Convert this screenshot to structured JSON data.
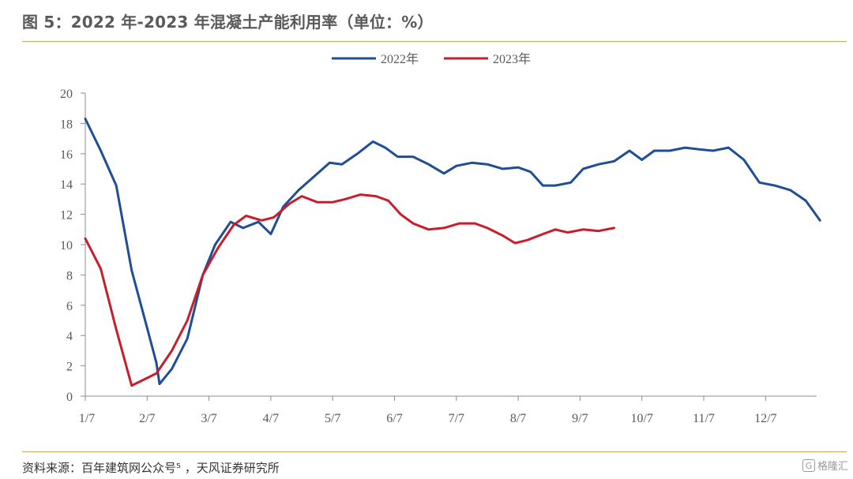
{
  "header": {
    "title": "图 5：2022 年-2023 年混凝土产能利用率（单位：%）"
  },
  "footer": {
    "source": "资料来源：百年建筑网公众号⁵ ，天风证券研究所",
    "watermark": "格隆汇",
    "watermark_icon": "G"
  },
  "chart_data": {
    "type": "line",
    "x_tick_labels": [
      "1/7",
      "2/7",
      "3/7",
      "4/7",
      "5/7",
      "6/7",
      "7/7",
      "8/7",
      "9/7",
      "10/7",
      "11/7",
      "12/7"
    ],
    "ylim": [
      0,
      20
    ],
    "y_ticks": [
      0,
      2,
      4,
      6,
      8,
      10,
      12,
      14,
      16,
      18,
      20
    ],
    "grid": false,
    "legend_position": "top-center",
    "series": [
      {
        "name": "2022年",
        "color": "#1f4e96",
        "points": [
          [
            0.0,
            18.3
          ],
          [
            0.25,
            16.2
          ],
          [
            0.5,
            13.9
          ],
          [
            0.75,
            8.3
          ],
          [
            1.0,
            4.5
          ],
          [
            1.15,
            2.2
          ],
          [
            1.2,
            0.8
          ],
          [
            1.4,
            1.8
          ],
          [
            1.65,
            3.8
          ],
          [
            1.9,
            8.0
          ],
          [
            2.1,
            10.0
          ],
          [
            2.35,
            11.5
          ],
          [
            2.55,
            11.1
          ],
          [
            2.8,
            11.5
          ],
          [
            3.0,
            10.7
          ],
          [
            3.2,
            12.5
          ],
          [
            3.45,
            13.6
          ],
          [
            3.7,
            14.5
          ],
          [
            3.95,
            15.4
          ],
          [
            4.15,
            15.3
          ],
          [
            4.4,
            16.0
          ],
          [
            4.65,
            16.8
          ],
          [
            4.85,
            16.4
          ],
          [
            5.05,
            15.8
          ],
          [
            5.3,
            15.8
          ],
          [
            5.55,
            15.3
          ],
          [
            5.8,
            14.7
          ],
          [
            6.0,
            15.2
          ],
          [
            6.25,
            15.4
          ],
          [
            6.5,
            15.3
          ],
          [
            6.75,
            15.0
          ],
          [
            7.0,
            15.1
          ],
          [
            7.2,
            14.8
          ],
          [
            7.4,
            13.9
          ],
          [
            7.6,
            13.9
          ],
          [
            7.85,
            14.1
          ],
          [
            8.05,
            15.0
          ],
          [
            8.3,
            15.3
          ],
          [
            8.55,
            15.5
          ],
          [
            8.8,
            16.2
          ],
          [
            9.0,
            15.6
          ],
          [
            9.2,
            16.2
          ],
          [
            9.45,
            16.2
          ],
          [
            9.7,
            16.4
          ],
          [
            9.9,
            16.3
          ],
          [
            10.15,
            16.2
          ],
          [
            10.4,
            16.4
          ],
          [
            10.65,
            15.6
          ],
          [
            10.9,
            14.1
          ],
          [
            11.15,
            13.9
          ],
          [
            11.4,
            13.6
          ],
          [
            11.65,
            12.9
          ],
          [
            11.88,
            11.6
          ]
        ]
      },
      {
        "name": "2023年",
        "color": "#c81e2b",
        "points": [
          [
            0.0,
            10.4
          ],
          [
            0.25,
            8.4
          ],
          [
            0.5,
            4.4
          ],
          [
            0.75,
            0.7
          ],
          [
            1.0,
            1.2
          ],
          [
            1.15,
            1.5
          ],
          [
            1.4,
            3.0
          ],
          [
            1.65,
            5.0
          ],
          [
            1.9,
            8.0
          ],
          [
            2.15,
            9.8
          ],
          [
            2.4,
            11.3
          ],
          [
            2.6,
            11.9
          ],
          [
            2.85,
            11.6
          ],
          [
            3.05,
            11.8
          ],
          [
            3.3,
            12.7
          ],
          [
            3.5,
            13.2
          ],
          [
            3.75,
            12.8
          ],
          [
            4.0,
            12.8
          ],
          [
            4.2,
            13.0
          ],
          [
            4.45,
            13.3
          ],
          [
            4.7,
            13.2
          ],
          [
            4.9,
            12.9
          ],
          [
            5.1,
            12.0
          ],
          [
            5.3,
            11.4
          ],
          [
            5.55,
            11.0
          ],
          [
            5.8,
            11.1
          ],
          [
            6.05,
            11.4
          ],
          [
            6.3,
            11.4
          ],
          [
            6.5,
            11.1
          ],
          [
            6.75,
            10.6
          ],
          [
            6.95,
            10.1
          ],
          [
            7.15,
            10.3
          ],
          [
            7.4,
            10.7
          ],
          [
            7.6,
            11.0
          ],
          [
            7.8,
            10.8
          ],
          [
            8.05,
            11.0
          ],
          [
            8.3,
            10.9
          ],
          [
            8.55,
            11.1
          ]
        ]
      }
    ]
  }
}
